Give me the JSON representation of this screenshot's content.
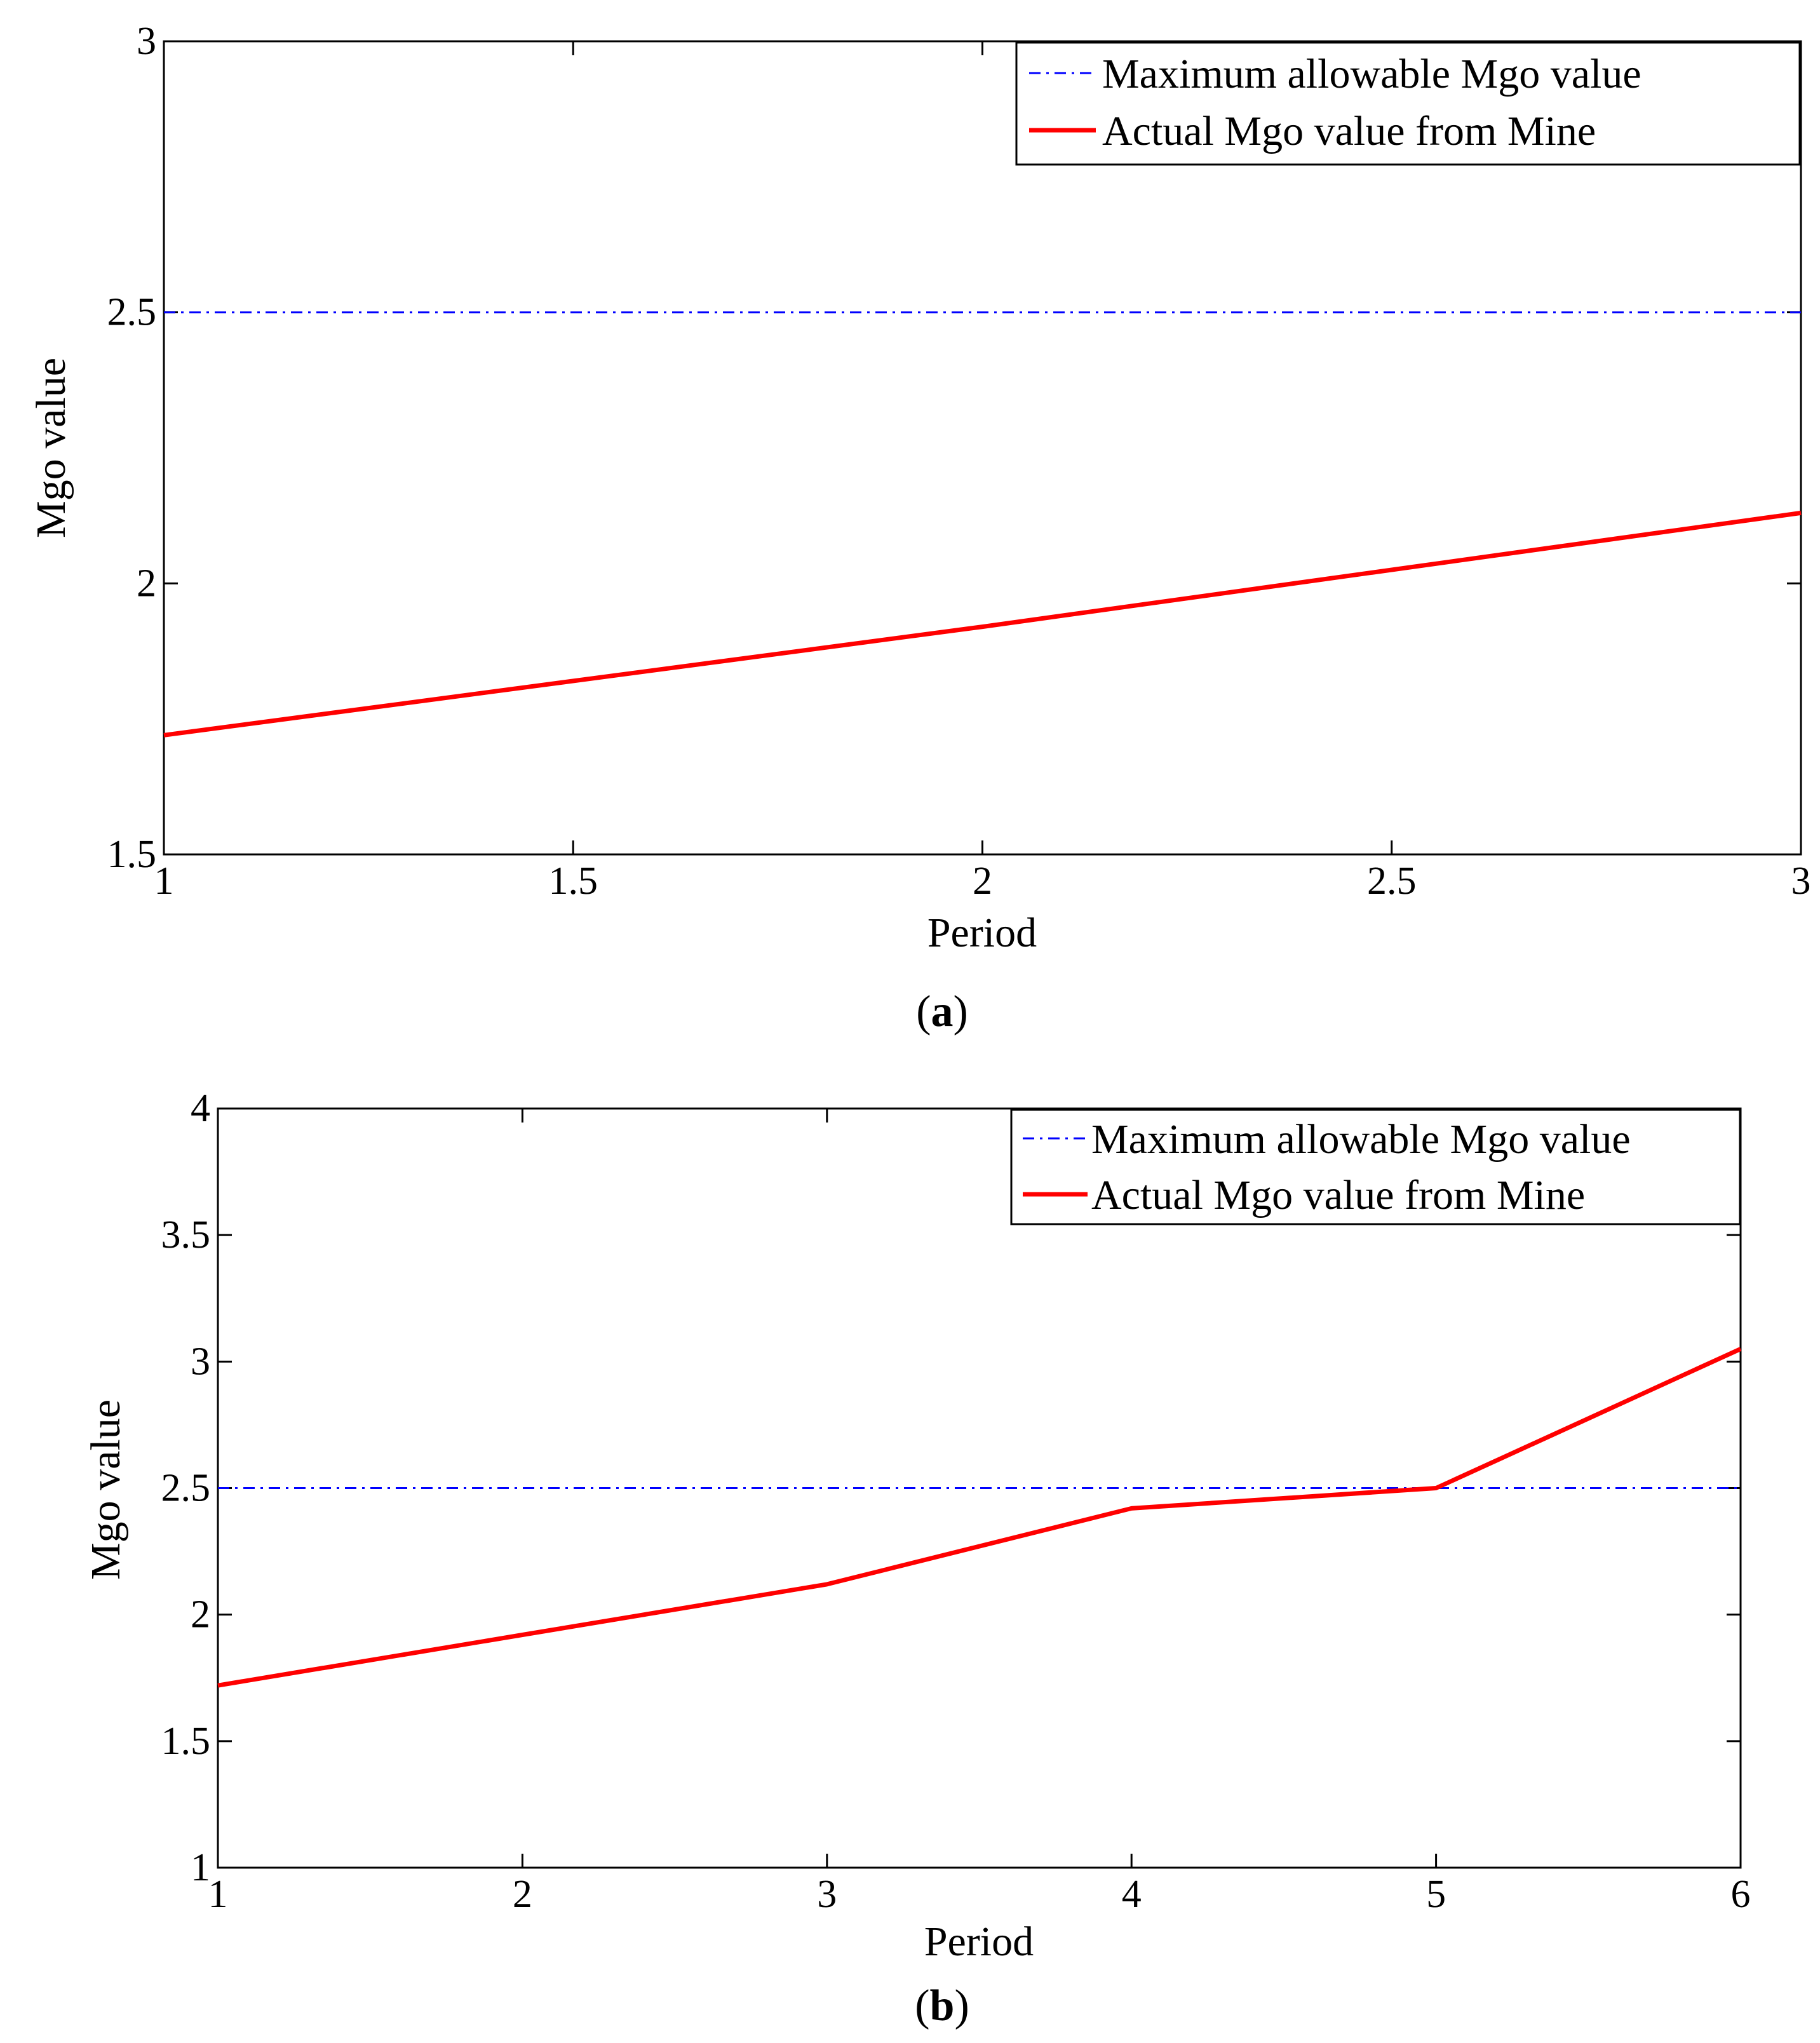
{
  "chart_data": [
    {
      "type": "line",
      "panel_label": "a",
      "xlabel": "Period",
      "ylabel": "Mgo value",
      "xlim": [
        1,
        3
      ],
      "ylim": [
        1.5,
        3
      ],
      "xticks": [
        1,
        1.5,
        2,
        2.5,
        3
      ],
      "yticks": [
        1.5,
        2,
        2.5,
        3
      ],
      "xtick_labels": [
        "1",
        "1.5",
        "2",
        "2.5",
        "3"
      ],
      "ytick_labels": [
        "1.5",
        "2",
        "2.5",
        "3"
      ],
      "grid": false,
      "legend_position": "top-right",
      "series": [
        {
          "name": "Maximum allowable Mgo value",
          "color": "#0000ff",
          "style": "dash-dot",
          "x": [
            1,
            3
          ],
          "y": [
            2.5,
            2.5
          ]
        },
        {
          "name": "Actual Mgo value from Mine",
          "color": "#ff0000",
          "style": "solid",
          "x": [
            1,
            2,
            3
          ],
          "y": [
            1.72,
            1.92,
            2.13
          ]
        }
      ]
    },
    {
      "type": "line",
      "panel_label": "b",
      "xlabel": "Period",
      "ylabel": "Mgo value",
      "xlim": [
        1,
        6
      ],
      "ylim": [
        1,
        4
      ],
      "xticks": [
        1,
        2,
        3,
        4,
        5,
        6
      ],
      "yticks": [
        1,
        1.5,
        2,
        2.5,
        3,
        3.5,
        4
      ],
      "xtick_labels": [
        "1",
        "2",
        "3",
        "4",
        "5",
        "6"
      ],
      "ytick_labels": [
        "1",
        "1.5",
        "2",
        "2.5",
        "3",
        "3.5",
        "4"
      ],
      "grid": false,
      "legend_position": "top-right",
      "series": [
        {
          "name": "Maximum allowable Mgo value",
          "color": "#0000ff",
          "style": "dash-dot",
          "x": [
            1,
            6
          ],
          "y": [
            2.5,
            2.5
          ]
        },
        {
          "name": "Actual Mgo value from Mine",
          "color": "#ff0000",
          "style": "solid",
          "x": [
            1,
            2,
            3,
            4,
            5,
            6
          ],
          "y": [
            1.72,
            1.92,
            2.12,
            2.42,
            2.5,
            3.05
          ]
        }
      ]
    }
  ]
}
